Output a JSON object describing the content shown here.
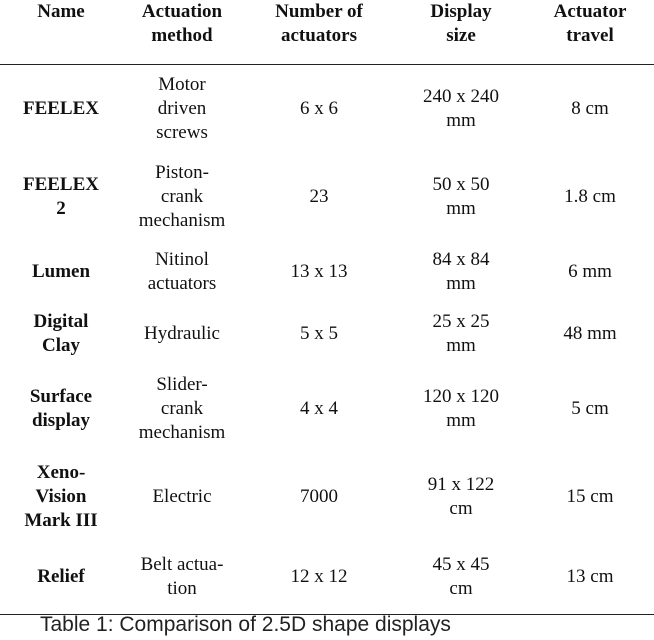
{
  "headers": [
    [
      "Name"
    ],
    [
      "Actuation",
      "method"
    ],
    [
      "Number of",
      "actuators"
    ],
    [
      "Display",
      "size"
    ],
    [
      "Actuator",
      "travel"
    ]
  ],
  "rows": [
    {
      "name": [
        "FEELEX"
      ],
      "method": [
        "Motor",
        "driven",
        "screws"
      ],
      "actuators": [
        "6 x 6"
      ],
      "size": [
        "240 x 240",
        "mm"
      ],
      "travel": [
        "8 cm"
      ]
    },
    {
      "name": [
        "FEELEX",
        "2"
      ],
      "method": [
        "Piston-",
        "crank",
        "mechanism"
      ],
      "actuators": [
        "23"
      ],
      "size": [
        "50 x 50",
        "mm"
      ],
      "travel": [
        "1.8 cm"
      ]
    },
    {
      "name": [
        "Lumen"
      ],
      "method": [
        "Nitinol",
        "actuators"
      ],
      "actuators": [
        "13 x 13"
      ],
      "size": [
        "84 x 84",
        "mm"
      ],
      "travel": [
        "6 mm"
      ]
    },
    {
      "name": [
        "Digital",
        "Clay"
      ],
      "method": [
        "Hydraulic"
      ],
      "actuators": [
        "5 x 5"
      ],
      "size": [
        "25 x 25",
        "mm"
      ],
      "travel": [
        "48 mm"
      ]
    },
    {
      "name": [
        "Surface",
        "display"
      ],
      "method": [
        "Slider-",
        "crank",
        "mechanism"
      ],
      "actuators": [
        "4 x 4"
      ],
      "size": [
        "120 x 120",
        "mm"
      ],
      "travel": [
        "5 cm"
      ]
    },
    {
      "name": [
        "Xeno-",
        "Vision",
        "Mark III"
      ],
      "method": [
        "Electric"
      ],
      "actuators": [
        "7000"
      ],
      "size": [
        "91 x 122",
        "cm"
      ],
      "travel": [
        "15 cm"
      ]
    },
    {
      "name": [
        "Relief"
      ],
      "method": [
        "Belt actua-",
        "tion"
      ],
      "actuators": [
        "12 x 12"
      ],
      "size": [
        "45 x 45",
        "cm"
      ],
      "travel": [
        "13 cm"
      ]
    }
  ],
  "caption": "Table 1: Comparison of 2.5D shape displays"
}
